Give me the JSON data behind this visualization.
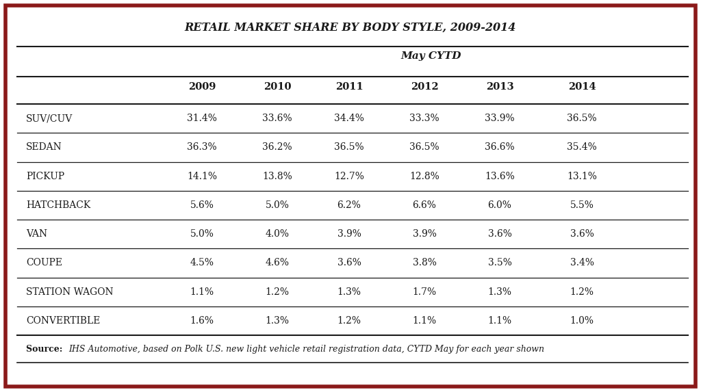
{
  "title": "RETAIL MARKET SHARE BY BODY STYLE, 2009-2014",
  "subtitle": "May CYTD",
  "years": [
    "2009",
    "2010",
    "2011",
    "2012",
    "2013",
    "2014"
  ],
  "rows": [
    {
      "label": "SUV/CUV",
      "values": [
        "31.4%",
        "33.6%",
        "34.4%",
        "33.3%",
        "33.9%",
        "36.5%"
      ]
    },
    {
      "label": "SEDAN",
      "values": [
        "36.3%",
        "36.2%",
        "36.5%",
        "36.5%",
        "36.6%",
        "35.4%"
      ]
    },
    {
      "label": "PICKUP",
      "values": [
        "14.1%",
        "13.8%",
        "12.7%",
        "12.8%",
        "13.6%",
        "13.1%"
      ]
    },
    {
      "label": "HATCHBACK",
      "values": [
        "5.6%",
        "5.0%",
        "6.2%",
        "6.6%",
        "6.0%",
        "5.5%"
      ]
    },
    {
      "label": "VAN",
      "values": [
        "5.0%",
        "4.0%",
        "3.9%",
        "3.9%",
        "3.6%",
        "3.6%"
      ]
    },
    {
      "label": "COUPE",
      "values": [
        "4.5%",
        "4.6%",
        "3.6%",
        "3.8%",
        "3.5%",
        "3.4%"
      ]
    },
    {
      "label": "STATION WAGON",
      "values": [
        "1.1%",
        "1.2%",
        "1.3%",
        "1.7%",
        "1.3%",
        "1.2%"
      ]
    },
    {
      "label": "CONVERTIBLE",
      "values": [
        "1.6%",
        "1.3%",
        "1.2%",
        "1.1%",
        "1.1%",
        "1.0%"
      ]
    }
  ],
  "source_bold": "Source: ",
  "source_italic": "IHS Automotive, based on Polk U.S. new light vehicle retail registration data, CYTD May for each year shown",
  "border_color": "#8B1A1A",
  "line_color": "#1a1a1a",
  "text_color": "#1a1a1a",
  "bg_color": "#ffffff",
  "title_fontsize": 11.5,
  "subtitle_fontsize": 11,
  "header_fontsize": 10.5,
  "cell_fontsize": 10,
  "source_fontsize": 9
}
